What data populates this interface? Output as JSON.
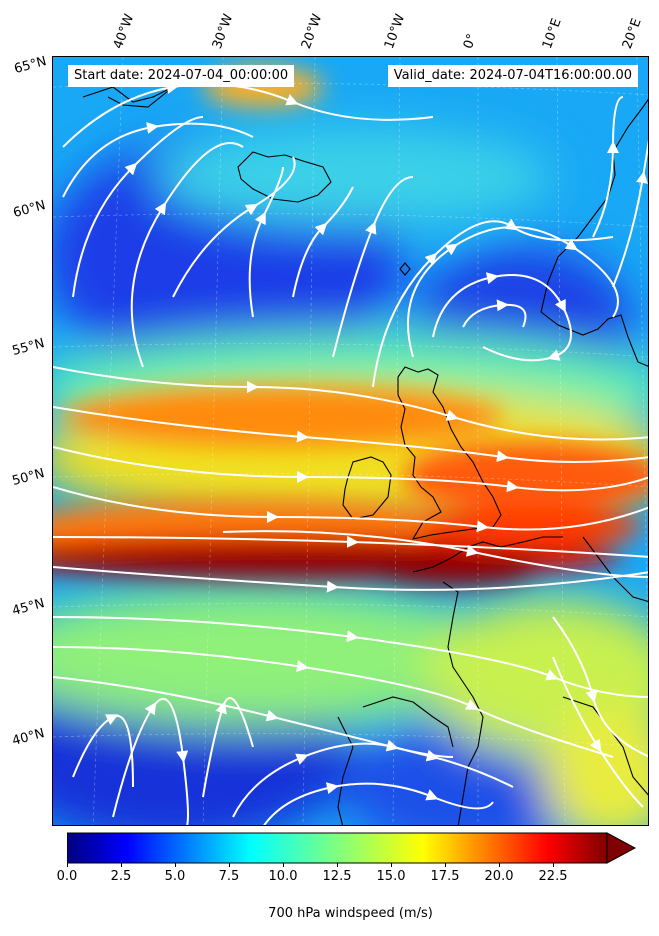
{
  "map": {
    "start_date": "Start date: 2024-07-04_00:00:00",
    "valid_date": "Valid_date: 2024-07-04T16:00:00.00",
    "longitude_labels": [
      "40°W",
      "30°W",
      "20°W",
      "10°W",
      "0°",
      "10°E",
      "20°E"
    ],
    "latitude_labels": [
      "65°N",
      "60°N",
      "55°N",
      "50°N",
      "45°N",
      "40°N"
    ],
    "field": "700 hPa windspeed",
    "features": [
      "wind-speed-contours",
      "streamlines",
      "coastlines",
      "graticule"
    ]
  },
  "colorbar": {
    "label": "700 hPa windspeed (m/s)",
    "ticks": [
      "0.0",
      "2.5",
      "5.0",
      "7.5",
      "10.0",
      "12.5",
      "15.0",
      "17.5",
      "20.0",
      "22.5"
    ],
    "min": 0,
    "max": 25,
    "extend": "max",
    "colormap": "jet",
    "colors": [
      "#00007f",
      "#0000ff",
      "#007fff",
      "#00ffff",
      "#7fff7f",
      "#ffff00",
      "#ff7f00",
      "#ff0000",
      "#7f0000"
    ]
  }
}
